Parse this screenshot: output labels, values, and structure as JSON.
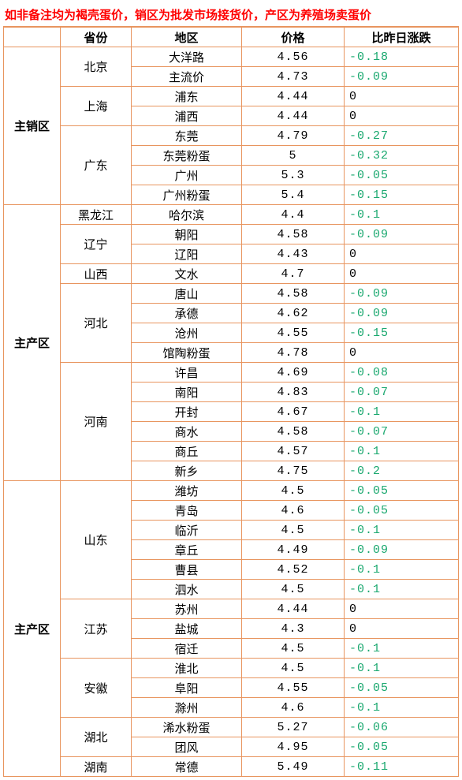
{
  "title": "如非备注均为褐壳蛋价，销区为批发市场接货价，产区为养殖场卖蛋价",
  "colors": {
    "border": "#e8955f",
    "title": "#ff0000",
    "negative": "#1aa86f",
    "zero": "#000000",
    "positive": "#ff0000",
    "background": "#ffffff"
  },
  "headers": {
    "zone": "",
    "province": "省份",
    "area": "地区",
    "price": "价格",
    "change": "比昨日涨跌"
  },
  "zones": [
    {
      "name": "主销区",
      "provinces": [
        {
          "name": "北京",
          "rows": [
            {
              "area": "大洋路",
              "price": "4.56",
              "change": "-0.18"
            },
            {
              "area": "主流价",
              "price": "4.73",
              "change": "-0.09"
            }
          ]
        },
        {
          "name": "上海",
          "rows": [
            {
              "area": "浦东",
              "price": "4.44",
              "change": "0"
            },
            {
              "area": "浦西",
              "price": "4.44",
              "change": "0"
            }
          ]
        },
        {
          "name": "广东",
          "rows": [
            {
              "area": "东莞",
              "price": "4.79",
              "change": "-0.27"
            },
            {
              "area": "东莞粉蛋",
              "price": "5",
              "change": "-0.32"
            },
            {
              "area": "广州",
              "price": "5.3",
              "change": "-0.05"
            },
            {
              "area": "广州粉蛋",
              "price": "5.4",
              "change": "-0.15"
            }
          ]
        }
      ]
    },
    {
      "name": "主产区",
      "provinces": [
        {
          "name": "黑龙江",
          "rows": [
            {
              "area": "哈尔滨",
              "price": "4.4",
              "change": "-0.1"
            }
          ]
        },
        {
          "name": "辽宁",
          "rows": [
            {
              "area": "朝阳",
              "price": "4.58",
              "change": "-0.09"
            },
            {
              "area": "辽阳",
              "price": "4.43",
              "change": "0"
            }
          ]
        },
        {
          "name": "山西",
          "rows": [
            {
              "area": "文水",
              "price": "4.7",
              "change": "0"
            }
          ]
        },
        {
          "name": "河北",
          "rows": [
            {
              "area": "唐山",
              "price": "4.58",
              "change": "-0.09"
            },
            {
              "area": "承德",
              "price": "4.62",
              "change": "-0.09"
            },
            {
              "area": "沧州",
              "price": "4.55",
              "change": "-0.15"
            },
            {
              "area": "馆陶粉蛋",
              "price": "4.78",
              "change": "0"
            }
          ]
        },
        {
          "name": "河南",
          "rows": [
            {
              "area": "许昌",
              "price": "4.69",
              "change": "-0.08"
            },
            {
              "area": "南阳",
              "price": "4.83",
              "change": "-0.07"
            },
            {
              "area": "开封",
              "price": "4.67",
              "change": "-0.1"
            },
            {
              "area": "商水",
              "price": "4.58",
              "change": "-0.07"
            },
            {
              "area": "商丘",
              "price": "4.57",
              "change": "-0.1"
            },
            {
              "area": "新乡",
              "price": "4.75",
              "change": "-0.2"
            }
          ]
        }
      ]
    },
    {
      "name": "主产区",
      "provinces": [
        {
          "name": "山东",
          "rows": [
            {
              "area": "潍坊",
              "price": "4.5",
              "change": "-0.05"
            },
            {
              "area": "青岛",
              "price": "4.6",
              "change": "-0.05"
            },
            {
              "area": "临沂",
              "price": "4.5",
              "change": "-0.1"
            },
            {
              "area": "章丘",
              "price": "4.49",
              "change": "-0.09"
            },
            {
              "area": "曹县",
              "price": "4.52",
              "change": "-0.1"
            },
            {
              "area": "泗水",
              "price": "4.5",
              "change": "-0.1"
            }
          ]
        },
        {
          "name": "江苏",
          "rows": [
            {
              "area": "苏州",
              "price": "4.44",
              "change": "0"
            },
            {
              "area": "盐城",
              "price": "4.3",
              "change": "0"
            },
            {
              "area": "宿迁",
              "price": "4.5",
              "change": "-0.1"
            }
          ]
        },
        {
          "name": "安徽",
          "rows": [
            {
              "area": "淮北",
              "price": "4.5",
              "change": "-0.1"
            },
            {
              "area": "阜阳",
              "price": "4.55",
              "change": "-0.05"
            },
            {
              "area": "滁州",
              "price": "4.6",
              "change": "-0.1"
            }
          ]
        },
        {
          "name": "湖北",
          "rows": [
            {
              "area": "浠水粉蛋",
              "price": "5.27",
              "change": "-0.06"
            },
            {
              "area": "团风",
              "price": "4.95",
              "change": "-0.05"
            }
          ]
        },
        {
          "name": "湖南",
          "rows": [
            {
              "area": "常德",
              "price": "5.49",
              "change": "-0.11"
            }
          ]
        }
      ]
    }
  ]
}
